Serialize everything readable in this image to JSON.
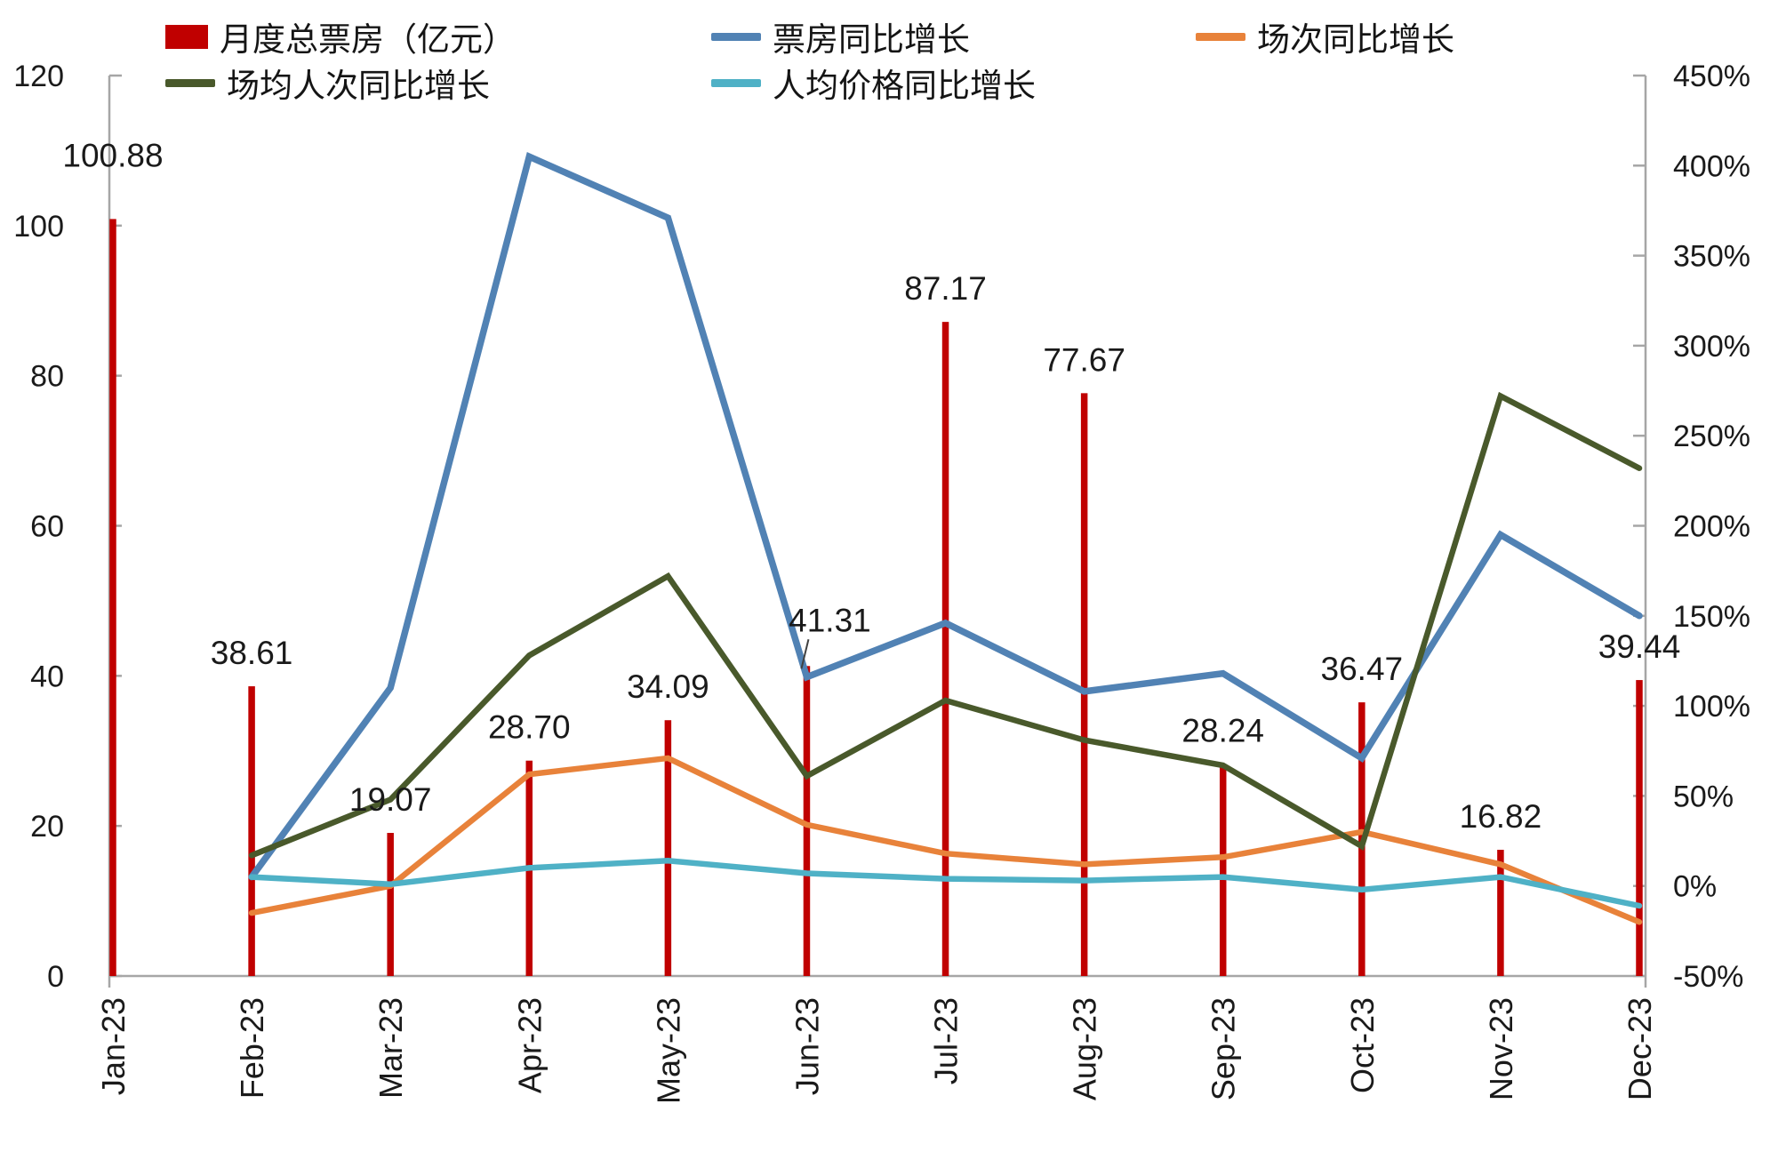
{
  "colors": {
    "bar_red": "#c00000",
    "line_blue": "#5182b4",
    "line_orange": "#e8823a",
    "line_green": "#49592b",
    "line_cyan": "#4fb1c6",
    "axis_gray": "#a6a6a6",
    "text": "#1a1a1a"
  },
  "legend": [
    {
      "label": "月度总票房（亿元）",
      "type": "bar",
      "color": "#c00000"
    },
    {
      "label": "票房同比增长",
      "type": "line",
      "color": "#5182b4"
    },
    {
      "label": "场次同比增长",
      "type": "line",
      "color": "#e8823a"
    },
    {
      "label": "场均人次同比增长",
      "type": "line",
      "color": "#49592b"
    },
    {
      "label": "人均价格同比增长",
      "type": "line",
      "color": "#4fb1c6"
    }
  ],
  "chart_data": {
    "type": "bar",
    "subtype": "combo bar+line, dual axis",
    "categories": [
      "Jan-23",
      "Feb-23",
      "Mar-23",
      "Apr-23",
      "May-23",
      "Jun-23",
      "Jul-23",
      "Aug-23",
      "Sep-23",
      "Oct-23",
      "Nov-23",
      "Dec-23"
    ],
    "bar_series": {
      "key": "monthly-box-office",
      "name": "月度总票房（亿元）",
      "axis": "left",
      "color": "#c00000",
      "values": [
        100.88,
        38.61,
        19.07,
        28.7,
        34.09,
        41.31,
        87.17,
        77.67,
        28.24,
        36.47,
        16.82,
        39.44
      ]
    },
    "bar_labels": [
      "100.88",
      "38.61",
      "19.07",
      "28.70",
      "34.09",
      "41.31",
      "87.17",
      "77.67",
      "28.24",
      "36.47",
      "16.82",
      "39.44"
    ],
    "series": [
      {
        "key": "box-office-yoy",
        "name": "票房同比增长",
        "axis": "right",
        "color": "#5182b4",
        "width": 7.5,
        "values": [
          null,
          5,
          110,
          405,
          371,
          116,
          146,
          108,
          118,
          71,
          195,
          150
        ]
      },
      {
        "key": "screenings-yoy",
        "name": "场次同比增长",
        "axis": "right",
        "color": "#e8823a",
        "width": 6.5,
        "values": [
          null,
          -15,
          0,
          62,
          71,
          34,
          18,
          12,
          16,
          30,
          12,
          -20
        ]
      },
      {
        "key": "attendance-per-screening-yoy",
        "name": "场均人次同比增长",
        "axis": "right",
        "color": "#49592b",
        "width": 6.5,
        "values": [
          null,
          17,
          48,
          128,
          172,
          61,
          103,
          81,
          67,
          22,
          272,
          232
        ]
      },
      {
        "key": "avg-price-yoy",
        "name": "人均价格同比增长",
        "axis": "right",
        "color": "#4fb1c6",
        "width": 6.5,
        "values": [
          null,
          5,
          1,
          10,
          14,
          7,
          4,
          3,
          5,
          -2,
          5,
          -11
        ]
      }
    ],
    "left_axis": {
      "min": 0,
      "max": 120,
      "step": 20,
      "ticks": [
        "0",
        "20",
        "40",
        "60",
        "80",
        "100",
        "120"
      ]
    },
    "right_axis": {
      "min": -50,
      "max": 450,
      "step": 50,
      "suffix": "%",
      "ticks": [
        "-50%",
        "0%",
        "50%",
        "100%",
        "150%",
        "200%",
        "250%",
        "300%",
        "350%",
        "400%",
        "450%"
      ]
    },
    "grid": false,
    "legend_position": "top-left",
    "label_adjust": {
      "0": {
        "dx": 0,
        "dy": -34
      },
      "5": {
        "dx": 26,
        "dy": -14,
        "leader": true
      }
    }
  }
}
